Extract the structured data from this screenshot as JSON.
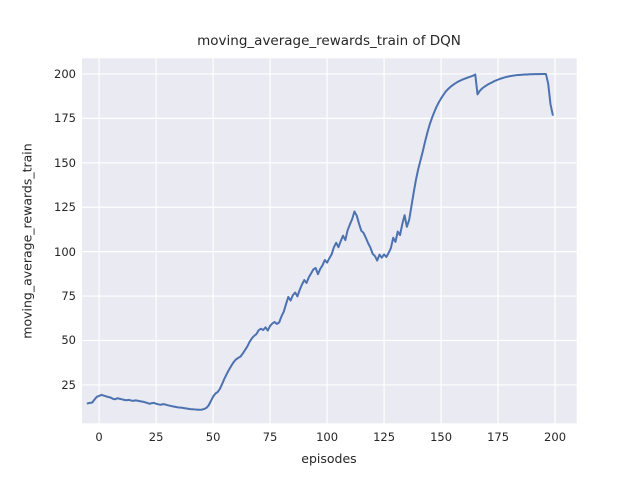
{
  "chart_data": {
    "type": "line",
    "title": "moving_average_rewards_train of DQN",
    "xlabel": "episodes",
    "ylabel": "moving_average_rewards_train",
    "xlim": [
      -7.5,
      209.5
    ],
    "ylim": [
      3.4,
      208.8
    ],
    "xticks": [
      0,
      25,
      50,
      75,
      100,
      125,
      150,
      175,
      200
    ],
    "yticks": [
      25,
      50,
      75,
      100,
      125,
      150,
      175,
      200
    ],
    "grid": true,
    "legend_position": "none",
    "style": {
      "figure_bg": "#FFFFFF",
      "axes_bg": "#EAEAF2",
      "grid_color": "#FFFFFF",
      "line_color": "#4C72B0",
      "text_color": "#262626"
    },
    "series": [
      {
        "name": "moving_average_rewards_train",
        "points": [
          [
            -5,
            14.6
          ],
          [
            -4,
            14.9
          ],
          [
            -3,
            15.1
          ],
          [
            -2,
            16.8
          ],
          [
            -1,
            18.3
          ],
          [
            0,
            18.8
          ],
          [
            1,
            19.4
          ],
          [
            2,
            19.0
          ],
          [
            3,
            18.6
          ],
          [
            4,
            18.2
          ],
          [
            5,
            17.9
          ],
          [
            6,
            17.2
          ],
          [
            7,
            16.9
          ],
          [
            8,
            17.5
          ],
          [
            9,
            17.2
          ],
          [
            10,
            16.9
          ],
          [
            11,
            16.6
          ],
          [
            12,
            16.4
          ],
          [
            13,
            16.6
          ],
          [
            14,
            16.2
          ],
          [
            15,
            16.0
          ],
          [
            16,
            16.3
          ],
          [
            17,
            16.1
          ],
          [
            18,
            15.8
          ],
          [
            19,
            15.6
          ],
          [
            20,
            15.3
          ],
          [
            21,
            14.9
          ],
          [
            22,
            14.4
          ],
          [
            23,
            14.7
          ],
          [
            24,
            14.9
          ],
          [
            25,
            14.4
          ],
          [
            26,
            14.1
          ],
          [
            27,
            13.8
          ],
          [
            28,
            14.2
          ],
          [
            29,
            14.0
          ],
          [
            30,
            13.6
          ],
          [
            31,
            13.3
          ],
          [
            32,
            13.0
          ],
          [
            33,
            12.8
          ],
          [
            34,
            12.5
          ],
          [
            35,
            12.3
          ],
          [
            36,
            12.2
          ],
          [
            37,
            12.0
          ],
          [
            38,
            11.8
          ],
          [
            39,
            11.6
          ],
          [
            40,
            11.4
          ],
          [
            41,
            11.3
          ],
          [
            42,
            11.2
          ],
          [
            43,
            11.1
          ],
          [
            44,
            11.0
          ],
          [
            45,
            11.1
          ],
          [
            46,
            11.4
          ],
          [
            47,
            12.0
          ],
          [
            48,
            13.4
          ],
          [
            49,
            15.8
          ],
          [
            50,
            18.4
          ],
          [
            51,
            20.1
          ],
          [
            52,
            21.0
          ],
          [
            53,
            22.8
          ],
          [
            54,
            25.6
          ],
          [
            55,
            28.6
          ],
          [
            56,
            31.2
          ],
          [
            57,
            33.6
          ],
          [
            58,
            35.8
          ],
          [
            59,
            37.8
          ],
          [
            60,
            39.3
          ],
          [
            61,
            40.2
          ],
          [
            62,
            40.9
          ],
          [
            63,
            42.6
          ],
          [
            64,
            44.6
          ],
          [
            65,
            46.6
          ],
          [
            66,
            49.2
          ],
          [
            67,
            51.2
          ],
          [
            68,
            52.6
          ],
          [
            69,
            53.6
          ],
          [
            70,
            55.8
          ],
          [
            71,
            56.6
          ],
          [
            72,
            55.9
          ],
          [
            73,
            57.4
          ],
          [
            74,
            55.6
          ],
          [
            75,
            58.2
          ],
          [
            76,
            59.6
          ],
          [
            77,
            60.4
          ],
          [
            78,
            59.3
          ],
          [
            79,
            60.2
          ],
          [
            80,
            63.6
          ],
          [
            81,
            66.2
          ],
          [
            82,
            70.5
          ],
          [
            83,
            74.5
          ],
          [
            84,
            72.5
          ],
          [
            85,
            75.5
          ],
          [
            86,
            77.0
          ],
          [
            87,
            74.8
          ],
          [
            88,
            78.5
          ],
          [
            89,
            81.5
          ],
          [
            90,
            84.0
          ],
          [
            91,
            82.4
          ],
          [
            92,
            85.6
          ],
          [
            93,
            87.8
          ],
          [
            94,
            90.0
          ],
          [
            95,
            90.8
          ],
          [
            96,
            87.3
          ],
          [
            97,
            90.3
          ],
          [
            98,
            92.3
          ],
          [
            99,
            95.3
          ],
          [
            100,
            93.8
          ],
          [
            101,
            96.3
          ],
          [
            102,
            98.5
          ],
          [
            103,
            102.5
          ],
          [
            104,
            105.0
          ],
          [
            105,
            102.5
          ],
          [
            106,
            106.0
          ],
          [
            107,
            109.0
          ],
          [
            108,
            106.5
          ],
          [
            109,
            112.0
          ],
          [
            110,
            115.3
          ],
          [
            111,
            118.3
          ],
          [
            112,
            122.6
          ],
          [
            113,
            120.3
          ],
          [
            114,
            115.8
          ],
          [
            115,
            111.8
          ],
          [
            116,
            110.5
          ],
          [
            117,
            107.8
          ],
          [
            118,
            104.8
          ],
          [
            119,
            102.3
          ],
          [
            120,
            98.8
          ],
          [
            121,
            97.5
          ],
          [
            122,
            95.0
          ],
          [
            123,
            98.3
          ],
          [
            124,
            96.6
          ],
          [
            125,
            98.4
          ],
          [
            126,
            97.0
          ],
          [
            127,
            99.3
          ],
          [
            128,
            102.0
          ],
          [
            129,
            107.8
          ],
          [
            130,
            105.5
          ],
          [
            131,
            111.3
          ],
          [
            132,
            109.3
          ],
          [
            133,
            115.5
          ],
          [
            134,
            120.5
          ],
          [
            135,
            114.0
          ],
          [
            136,
            117.8
          ],
          [
            137,
            125.5
          ],
          [
            138,
            133.3
          ],
          [
            139,
            140.5
          ],
          [
            140,
            146.5
          ],
          [
            141,
            151.5
          ],
          [
            142,
            156.5
          ],
          [
            143,
            162.0
          ],
          [
            144,
            167.0
          ],
          [
            145,
            171.5
          ],
          [
            146,
            175.2
          ],
          [
            147,
            178.5
          ],
          [
            148,
            181.5
          ],
          [
            149,
            184.0
          ],
          [
            150,
            186.2
          ],
          [
            151,
            188.2
          ],
          [
            152,
            190.0
          ],
          [
            153,
            191.4
          ],
          [
            154,
            192.6
          ],
          [
            155,
            193.6
          ],
          [
            156,
            194.5
          ],
          [
            157,
            195.3
          ],
          [
            158,
            196.0
          ],
          [
            159,
            196.6
          ],
          [
            160,
            197.1
          ],
          [
            161,
            197.6
          ],
          [
            162,
            198.1
          ],
          [
            163,
            198.5
          ],
          [
            164,
            199.0
          ],
          [
            165,
            199.7
          ],
          [
            166,
            188.5
          ],
          [
            167,
            190.5
          ],
          [
            168,
            191.8
          ],
          [
            169,
            192.8
          ],
          [
            170,
            193.6
          ],
          [
            171,
            194.4
          ],
          [
            172,
            195.0
          ],
          [
            173,
            195.7
          ],
          [
            174,
            196.3
          ],
          [
            175,
            196.8
          ],
          [
            176,
            197.3
          ],
          [
            177,
            197.7
          ],
          [
            178,
            198.1
          ],
          [
            179,
            198.4
          ],
          [
            180,
            198.7
          ],
          [
            181,
            198.9
          ],
          [
            182,
            199.1
          ],
          [
            183,
            199.3
          ],
          [
            184,
            199.4
          ],
          [
            185,
            199.5
          ],
          [
            186,
            199.6
          ],
          [
            187,
            199.7
          ],
          [
            188,
            199.7
          ],
          [
            189,
            199.8
          ],
          [
            190,
            199.8
          ],
          [
            191,
            199.9
          ],
          [
            192,
            199.9
          ],
          [
            193,
            199.9
          ],
          [
            194,
            200.0
          ],
          [
            195,
            200.0
          ],
          [
            196,
            200.0
          ],
          [
            197,
            194.5
          ],
          [
            198,
            183.0
          ],
          [
            199,
            177.0
          ]
        ]
      }
    ]
  }
}
